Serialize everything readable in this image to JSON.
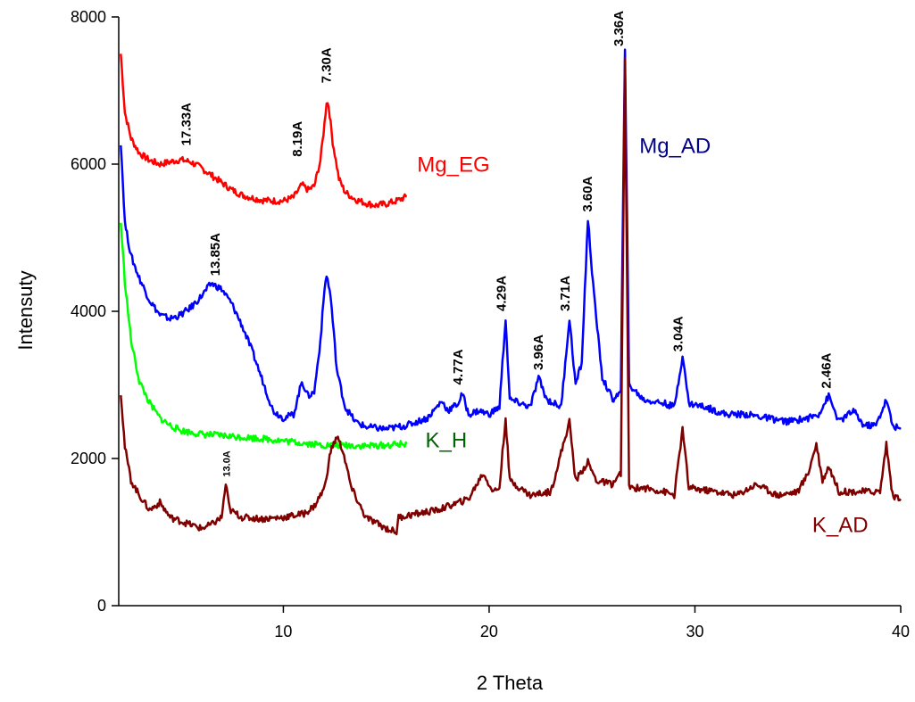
{
  "chart_data": {
    "type": "line",
    "title": "",
    "xlabel": "2 Theta",
    "ylabel": "Intensuty",
    "xlim": [
      2,
      40
    ],
    "ylim": [
      0,
      8000
    ],
    "x_ticks": [
      10,
      20,
      30,
      40
    ],
    "y_ticks": [
      0,
      2000,
      4000,
      6000,
      8000
    ],
    "grid": false,
    "series": [
      {
        "name": "Mg_EG",
        "color": "#ff0000",
        "points": [
          [
            2.1,
            7500
          ],
          [
            2.3,
            6700
          ],
          [
            2.6,
            6350
          ],
          [
            3.0,
            6150
          ],
          [
            3.5,
            6050
          ],
          [
            4.0,
            6000
          ],
          [
            4.5,
            6030
          ],
          [
            5.0,
            6060
          ],
          [
            5.5,
            6030
          ],
          [
            6.0,
            5950
          ],
          [
            6.5,
            5850
          ],
          [
            7.0,
            5750
          ],
          [
            7.5,
            5650
          ],
          [
            8.0,
            5580
          ],
          [
            8.5,
            5540
          ],
          [
            9.0,
            5510
          ],
          [
            9.5,
            5500
          ],
          [
            10.0,
            5500
          ],
          [
            10.5,
            5550
          ],
          [
            10.9,
            5720
          ],
          [
            11.2,
            5650
          ],
          [
            11.5,
            5700
          ],
          [
            11.8,
            6050
          ],
          [
            12.0,
            6550
          ],
          [
            12.1,
            6850
          ],
          [
            12.2,
            6800
          ],
          [
            12.4,
            6300
          ],
          [
            12.7,
            5800
          ],
          [
            13.0,
            5620
          ],
          [
            13.5,
            5520
          ],
          [
            14.0,
            5470
          ],
          [
            14.5,
            5440
          ],
          [
            15.0,
            5460
          ],
          [
            15.5,
            5500
          ],
          [
            16.0,
            5560
          ]
        ]
      },
      {
        "name": "Mg_AD",
        "color": "#0000ff",
        "points": [
          [
            2.1,
            6300
          ],
          [
            2.3,
            5200
          ],
          [
            2.6,
            4750
          ],
          [
            3.0,
            4450
          ],
          [
            3.5,
            4150
          ],
          [
            4.0,
            3950
          ],
          [
            4.5,
            3900
          ],
          [
            5.0,
            3950
          ],
          [
            5.5,
            4050
          ],
          [
            6.0,
            4200
          ],
          [
            6.5,
            4380
          ],
          [
            7.0,
            4300
          ],
          [
            7.5,
            4100
          ],
          [
            8.0,
            3800
          ],
          [
            8.5,
            3450
          ],
          [
            9.0,
            3050
          ],
          [
            9.5,
            2650
          ],
          [
            10.0,
            2550
          ],
          [
            10.5,
            2600
          ],
          [
            10.9,
            3050
          ],
          [
            11.2,
            2850
          ],
          [
            11.5,
            2900
          ],
          [
            11.8,
            3600
          ],
          [
            12.0,
            4300
          ],
          [
            12.1,
            4500
          ],
          [
            12.3,
            4200
          ],
          [
            12.6,
            3200
          ],
          [
            13.0,
            2700
          ],
          [
            13.5,
            2500
          ],
          [
            14.0,
            2430
          ],
          [
            15.0,
            2400
          ],
          [
            16.0,
            2450
          ],
          [
            17.0,
            2550
          ],
          [
            17.7,
            2780
          ],
          [
            18.0,
            2650
          ],
          [
            18.5,
            2750
          ],
          [
            18.7,
            2880
          ],
          [
            19.0,
            2600
          ],
          [
            19.5,
            2650
          ],
          [
            20.0,
            2600
          ],
          [
            20.5,
            2700
          ],
          [
            20.8,
            3900
          ],
          [
            21.0,
            2800
          ],
          [
            21.5,
            2750
          ],
          [
            22.0,
            2700
          ],
          [
            22.4,
            3100
          ],
          [
            22.8,
            2800
          ],
          [
            23.5,
            2700
          ],
          [
            23.9,
            3900
          ],
          [
            24.2,
            3000
          ],
          [
            24.5,
            3300
          ],
          [
            24.8,
            5250
          ],
          [
            25.1,
            4200
          ],
          [
            25.5,
            3100
          ],
          [
            26.0,
            2800
          ],
          [
            26.4,
            2900
          ],
          [
            26.6,
            7600
          ],
          [
            26.8,
            3000
          ],
          [
            27.5,
            2800
          ],
          [
            28.5,
            2750
          ],
          [
            29.0,
            2700
          ],
          [
            29.4,
            3400
          ],
          [
            29.7,
            2750
          ],
          [
            30.5,
            2700
          ],
          [
            31.5,
            2600
          ],
          [
            32.5,
            2600
          ],
          [
            33.5,
            2550
          ],
          [
            34.5,
            2500
          ],
          [
            35.5,
            2550
          ],
          [
            36.0,
            2600
          ],
          [
            36.5,
            2850
          ],
          [
            37.0,
            2500
          ],
          [
            37.7,
            2650
          ],
          [
            38.2,
            2450
          ],
          [
            38.8,
            2450
          ],
          [
            39.3,
            2800
          ],
          [
            39.6,
            2450
          ],
          [
            40.0,
            2400
          ]
        ]
      },
      {
        "name": "K_H",
        "color": "#00ff00",
        "points": [
          [
            2.1,
            5200
          ],
          [
            2.3,
            4400
          ],
          [
            2.6,
            3600
          ],
          [
            3.0,
            3050
          ],
          [
            3.5,
            2750
          ],
          [
            4.0,
            2550
          ],
          [
            4.5,
            2450
          ],
          [
            5.0,
            2380
          ],
          [
            6.0,
            2330
          ],
          [
            7.0,
            2310
          ],
          [
            8.0,
            2290
          ],
          [
            9.0,
            2270
          ],
          [
            10.0,
            2240
          ],
          [
            11.0,
            2210
          ],
          [
            12.0,
            2180
          ],
          [
            13.0,
            2180
          ],
          [
            14.0,
            2170
          ],
          [
            15.0,
            2180
          ],
          [
            16.0,
            2200
          ]
        ]
      },
      {
        "name": "K_AD",
        "color": "#800000",
        "points": [
          [
            2.1,
            2900
          ],
          [
            2.3,
            2150
          ],
          [
            2.6,
            1700
          ],
          [
            3.0,
            1500
          ],
          [
            3.5,
            1300
          ],
          [
            4.0,
            1400
          ],
          [
            4.5,
            1200
          ],
          [
            5.0,
            1150
          ],
          [
            5.5,
            1100
          ],
          [
            6.0,
            1050
          ],
          [
            6.5,
            1100
          ],
          [
            7.0,
            1200
          ],
          [
            7.2,
            1650
          ],
          [
            7.4,
            1300
          ],
          [
            8.0,
            1200
          ],
          [
            9.0,
            1180
          ],
          [
            10.0,
            1200
          ],
          [
            11.0,
            1250
          ],
          [
            11.5,
            1350
          ],
          [
            12.0,
            1600
          ],
          [
            12.3,
            2100
          ],
          [
            12.6,
            2300
          ],
          [
            12.9,
            2100
          ],
          [
            13.3,
            1600
          ],
          [
            14.0,
            1200
          ],
          [
            15.0,
            1050
          ],
          [
            15.5,
            1000
          ],
          [
            15.6,
            1200
          ],
          [
            16.5,
            1250
          ],
          [
            17.5,
            1300
          ],
          [
            18.5,
            1400
          ],
          [
            19.0,
            1450
          ],
          [
            19.7,
            1800
          ],
          [
            20.2,
            1550
          ],
          [
            20.5,
            1600
          ],
          [
            20.8,
            2550
          ],
          [
            21.0,
            1700
          ],
          [
            21.5,
            1600
          ],
          [
            22.0,
            1500
          ],
          [
            23.0,
            1550
          ],
          [
            23.9,
            2500
          ],
          [
            24.2,
            1700
          ],
          [
            24.8,
            1950
          ],
          [
            25.2,
            1700
          ],
          [
            26.0,
            1650
          ],
          [
            26.4,
            1800
          ],
          [
            26.6,
            7400
          ],
          [
            26.8,
            1600
          ],
          [
            27.5,
            1600
          ],
          [
            28.5,
            1550
          ],
          [
            29.0,
            1500
          ],
          [
            29.4,
            2400
          ],
          [
            29.7,
            1600
          ],
          [
            31.0,
            1550
          ],
          [
            32.0,
            1500
          ],
          [
            33.0,
            1650
          ],
          [
            34.0,
            1500
          ],
          [
            35.0,
            1550
          ],
          [
            35.5,
            1800
          ],
          [
            35.9,
            2200
          ],
          [
            36.2,
            1700
          ],
          [
            36.5,
            1900
          ],
          [
            37.0,
            1550
          ],
          [
            38.0,
            1550
          ],
          [
            39.0,
            1550
          ],
          [
            39.3,
            2200
          ],
          [
            39.6,
            1500
          ],
          [
            40.0,
            1450
          ]
        ]
      }
    ],
    "series_labels": [
      {
        "text": "Mg_EG",
        "x": 16.5,
        "y": 5900,
        "color": "#ff0000"
      },
      {
        "text": "Mg_AD",
        "x": 27.3,
        "y": 6150,
        "color": "#00008b"
      },
      {
        "text": "K_H",
        "x": 16.9,
        "y": 2150,
        "color": "#006400"
      },
      {
        "text": "K_AD",
        "x": 35.7,
        "y": 1000,
        "color": "#800000"
      }
    ],
    "annotations": [
      {
        "text": "17.33A",
        "x": 5.5,
        "y": 6250
      },
      {
        "text": "8.19A",
        "x": 10.9,
        "y": 6100
      },
      {
        "text": "7.30A",
        "x": 12.3,
        "y": 7100
      },
      {
        "text": "13.85A",
        "x": 6.9,
        "y": 4480
      },
      {
        "text": "4.77A",
        "x": 18.7,
        "y": 3000
      },
      {
        "text": "4.29A",
        "x": 20.8,
        "y": 4000
      },
      {
        "text": "3.96A",
        "x": 22.6,
        "y": 3200
      },
      {
        "text": "3.71A",
        "x": 23.9,
        "y": 4000
      },
      {
        "text": "3.60A",
        "x": 25.0,
        "y": 5350
      },
      {
        "text": "3.36A",
        "x": 26.5,
        "y": 7600
      },
      {
        "text": "3.04A",
        "x": 29.4,
        "y": 3450
      },
      {
        "text": "2.46A",
        "x": 36.6,
        "y": 2950
      },
      {
        "text": "13.0A",
        "x": 7.4,
        "y": 1750,
        "small": true
      }
    ]
  }
}
